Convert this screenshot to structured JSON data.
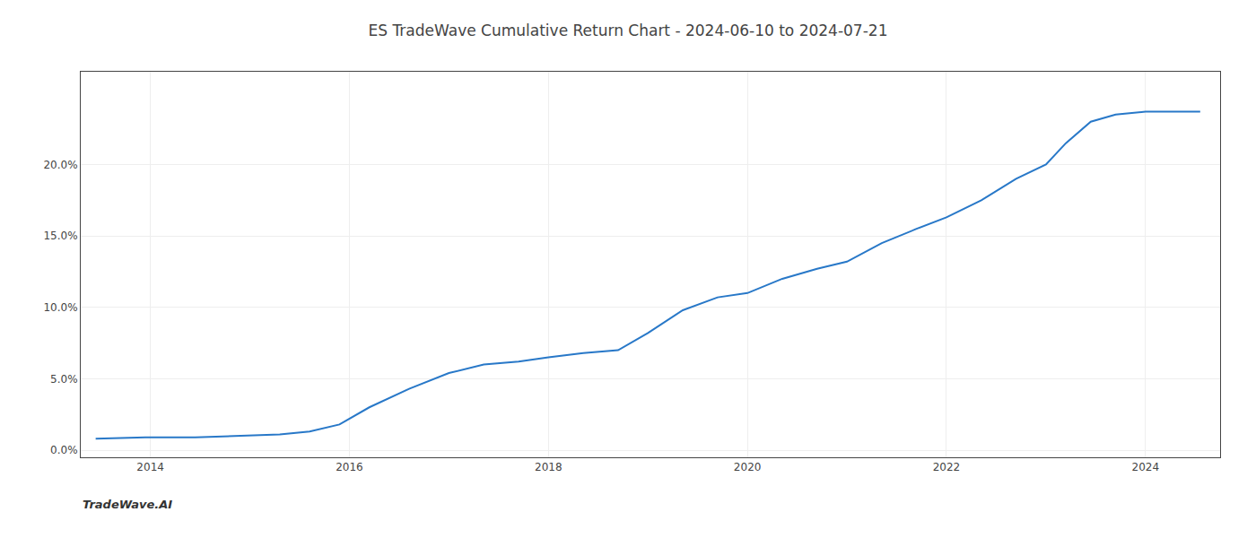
{
  "chart_data": {
    "type": "line",
    "title": "ES TradeWave Cumulative Return Chart - 2024-06-10 to 2024-07-21",
    "annotations": [
      "TradeWave.AI"
    ],
    "x": [
      2013.45,
      2013.95,
      2014.45,
      2014.97,
      2015.3,
      2015.6,
      2015.9,
      2016.2,
      2016.6,
      2017.0,
      2017.35,
      2017.7,
      2018.0,
      2018.35,
      2018.7,
      2019.0,
      2019.35,
      2019.7,
      2020.0,
      2020.35,
      2020.7,
      2021.0,
      2021.35,
      2021.7,
      2022.0,
      2022.35,
      2022.7,
      2023.0,
      2023.2,
      2023.45,
      2023.7,
      2024.0,
      2024.55
    ],
    "values": [
      0.008,
      0.009,
      0.009,
      0.01,
      0.011,
      0.013,
      0.018,
      0.03,
      0.043,
      0.054,
      0.06,
      0.062,
      0.065,
      0.068,
      0.07,
      0.082,
      0.098,
      0.107,
      0.11,
      0.12,
      0.127,
      0.132,
      0.145,
      0.155,
      0.163,
      0.175,
      0.19,
      0.2,
      0.215,
      0.23,
      0.235,
      0.237,
      0.237
    ],
    "color": "#2878c8",
    "xlim": [
      2013.3,
      2024.75
    ],
    "xticks": [
      2014,
      2016,
      2018,
      2020,
      2022,
      2024
    ],
    "ylim": [
      -0.005,
      0.265
    ],
    "yticks": [
      {
        "value": 0.0,
        "label": "0.0%"
      },
      {
        "value": 0.05,
        "label": "5.0%"
      },
      {
        "value": 0.1,
        "label": "10.0%"
      },
      {
        "value": 0.15,
        "label": "15.0%"
      },
      {
        "value": 0.2,
        "label": "20.0%"
      }
    ],
    "grid": true
  }
}
